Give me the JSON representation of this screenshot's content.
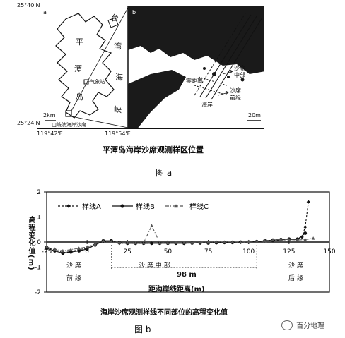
{
  "figure_a": {
    "lat_top": "25°40'N",
    "lat_bottom": "25°24'N",
    "lon_left": "119°42'E",
    "lon_right": "119°54'E",
    "panel_a_letter": "a",
    "panel_b_letter": "b",
    "strait_chars": [
      "台",
      "湾",
      "海",
      "峡"
    ],
    "island_chars": [
      "平",
      "潭",
      "岛"
    ],
    "weather_station": "·气象站",
    "sample_site": "山岐澳海岸沙席",
    "scale_a": "2km",
    "scale_b": "20m",
    "zero_distance": "零距离",
    "sand_mid": [
      "沙",
      "席",
      "中",
      "部"
    ],
    "sand_front": [
      "沙",
      "席",
      "前",
      "缘"
    ],
    "coast": "海岸",
    "caption": "平潭岛海岸沙席观测样区位置",
    "label": "图 a"
  },
  "figure_b": {
    "ylabel": "高程变化值(m)",
    "xlabel": "距海岸线距离(m)",
    "span_label": "98 m",
    "zones": [
      {
        "label": "沙  席",
        "sub": "前  缘"
      },
      {
        "label": "沙   席    中   部",
        "sub": ""
      },
      {
        "label": "沙  席",
        "sub": "后  缘"
      }
    ],
    "caption": "海岸沙席观测样线不同部位的高程变化值",
    "label": "图 b",
    "watermark": "百分地理"
  },
  "chart_data": {
    "type": "line",
    "xlabel": "距海岸线距离(m)",
    "ylabel": "高程变化值(m)",
    "xlim": [
      -25,
      150
    ],
    "ylim": [
      -2,
      2
    ],
    "x_ticks": [
      "-25",
      "0",
      "25",
      "50",
      "75",
      "100",
      "125",
      "150"
    ],
    "y_ticks": [
      "2",
      "1",
      "0",
      "-1",
      "-2"
    ],
    "legend": "top-left",
    "series": [
      {
        "name": "样线A",
        "color": "#111111",
        "x": [
          -25,
          -20,
          -15,
          -10,
          -5,
          0,
          5,
          10,
          15,
          20,
          25,
          30,
          35,
          40,
          45,
          50,
          55,
          60,
          65,
          70,
          75,
          80,
          85,
          90,
          95,
          100,
          105,
          110,
          115,
          120,
          125,
          130,
          133,
          135,
          137
        ],
        "y": [
          -0.2,
          -0.3,
          -0.42,
          -0.38,
          -0.3,
          -0.25,
          -0.1,
          0.02,
          0.05,
          -0.05,
          -0.05,
          -0.05,
          -0.05,
          -0.05,
          -0.04,
          -0.04,
          -0.04,
          -0.05,
          -0.04,
          -0.03,
          -0.03,
          -0.02,
          -0.02,
          -0.02,
          -0.01,
          0.0,
          0.02,
          0.05,
          0.05,
          0.08,
          0.1,
          0.12,
          0.2,
          0.6,
          1.6
        ]
      },
      {
        "name": "样线B",
        "color": "#111111",
        "x": [
          -25,
          -20,
          -15,
          -10,
          -5,
          0,
          5,
          10,
          15,
          20,
          25,
          30,
          35,
          40,
          45,
          50,
          55,
          60,
          65,
          70,
          75,
          80,
          85,
          90,
          95,
          100,
          105,
          110,
          115,
          120,
          125,
          130,
          135
        ],
        "y": [
          -0.25,
          -0.35,
          -0.45,
          -0.4,
          -0.35,
          -0.28,
          -0.12,
          0.05,
          0.05,
          -0.03,
          -0.05,
          -0.05,
          -0.05,
          -0.05,
          -0.05,
          -0.05,
          -0.05,
          -0.05,
          -0.04,
          -0.04,
          -0.04,
          -0.03,
          -0.02,
          -0.02,
          0.0,
          0.0,
          0.02,
          0.05,
          0.08,
          0.1,
          0.12,
          0.1,
          0.35
        ]
      },
      {
        "name": "样线C",
        "color": "#555555",
        "x": [
          -25,
          -20,
          -15,
          -10,
          -5,
          0,
          5,
          10,
          15,
          20,
          25,
          30,
          35,
          40,
          45,
          50,
          55,
          60,
          65,
          70,
          75,
          80,
          85,
          90,
          95,
          100,
          105,
          110,
          115,
          120,
          125,
          130,
          135,
          140
        ],
        "y": [
          -0.2,
          -0.28,
          -0.35,
          -0.3,
          -0.25,
          -0.2,
          -0.08,
          0.05,
          0.02,
          -0.02,
          -0.02,
          -0.03,
          -0.03,
          0.65,
          -0.03,
          -0.03,
          -0.02,
          -0.02,
          -0.02,
          -0.01,
          -0.01,
          0.0,
          0.0,
          0.0,
          0.0,
          0.02,
          0.03,
          0.05,
          0.08,
          0.1,
          0.1,
          0.08,
          0.1,
          0.15
        ]
      }
    ]
  }
}
